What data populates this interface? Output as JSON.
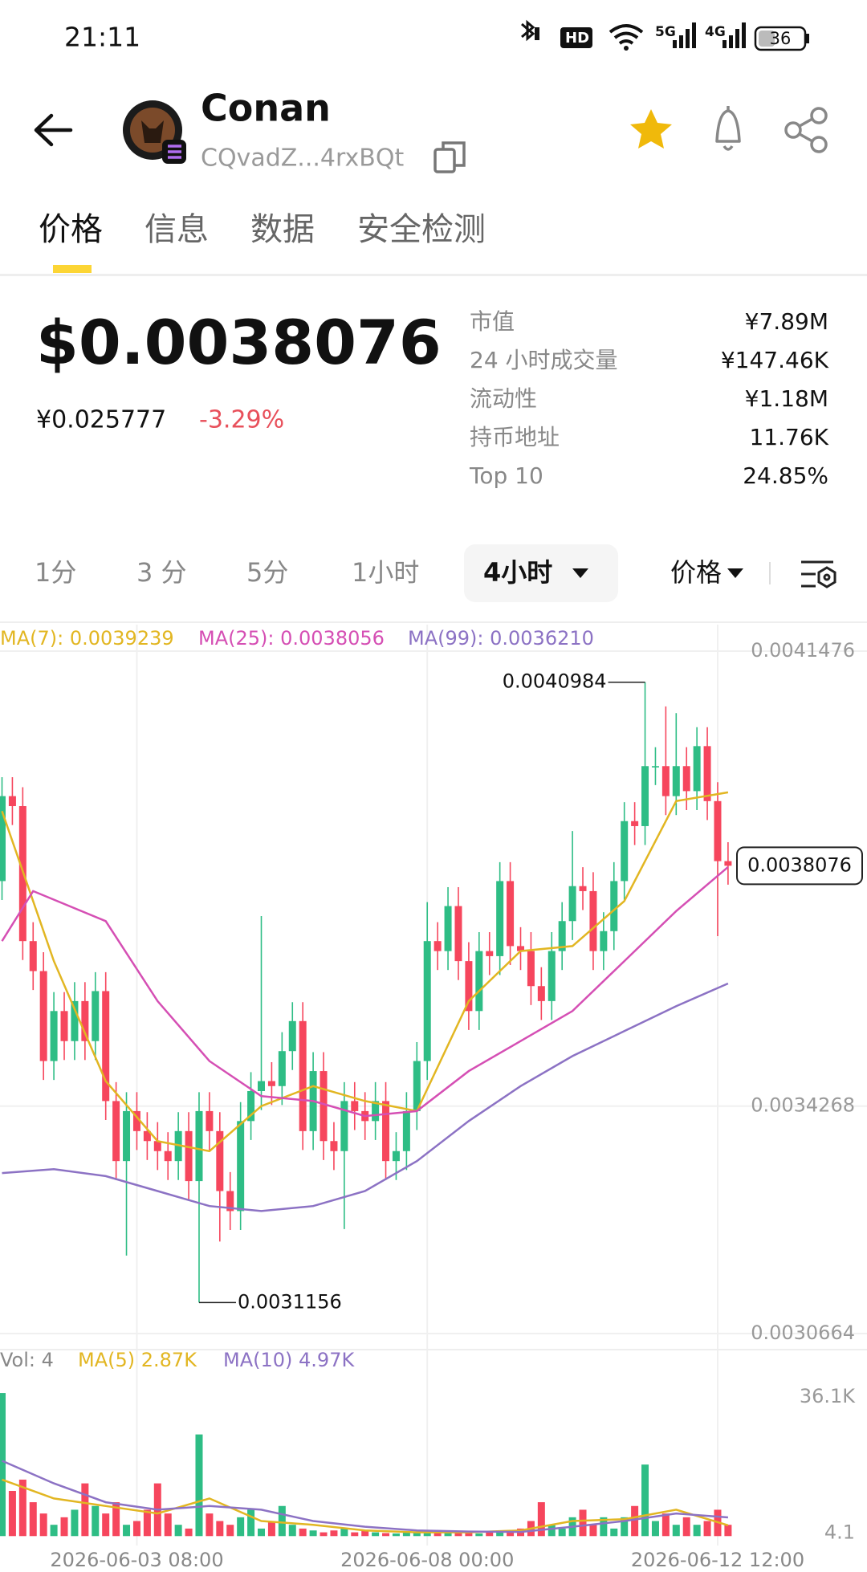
{
  "status_bar": {
    "time": "21:11",
    "hd": "HD",
    "network": [
      "5G",
      "4G"
    ],
    "battery": "36"
  },
  "header": {
    "name": "Conan",
    "address": "CQvadZ...4rxBQt"
  },
  "tabs": [
    "价格",
    "信息",
    "数据",
    "安全检测"
  ],
  "price": {
    "usd": "$0.0038076",
    "cny": "¥0.025777",
    "change": "-3.29%"
  },
  "stats": [
    {
      "label": "市值",
      "value": "¥7.89M"
    },
    {
      "label": "24 小时成交量",
      "value": "¥147.46K"
    },
    {
      "label": "流动性",
      "value": "¥1.18M"
    },
    {
      "label": "持币地址",
      "value": "11.76K"
    },
    {
      "label": "Top 10",
      "value": "24.85%"
    }
  ],
  "timeframes": [
    "1分",
    "3 分",
    "5分",
    "1小时",
    "4小时"
  ],
  "price_menu": "价格",
  "chart_data": {
    "type": "candlestick",
    "categories": [
      null,
      null,
      null,
      null,
      null,
      null,
      null,
      null,
      null,
      null,
      null,
      null,
      null,
      "2026-06-03 08:00",
      null,
      null,
      null,
      null,
      null,
      null,
      null,
      null,
      null,
      null,
      null,
      null,
      null,
      null,
      null,
      null,
      null,
      null,
      null,
      null,
      null,
      null,
      null,
      null,
      null,
      null,
      null,
      "2026-06-08 00:00",
      null,
      null,
      null,
      null,
      null,
      null,
      null,
      null,
      null,
      null,
      null,
      null,
      null,
      null,
      null,
      null,
      null,
      null,
      null,
      null,
      null,
      null,
      null,
      null,
      null,
      null,
      null,
      "2026-06-12 12:00",
      null
    ],
    "candles": {
      "open": [
        0.0037833,
        0.0039179,
        0.0039021,
        0.0036882,
        0.0036407,
        0.0034982,
        0.0035774,
        0.0035298,
        0.0035932,
        0.0035298,
        0.003609,
        0.0034348,
        0.0033397,
        0.0034189,
        0.0033872,
        0.0033714,
        0.0033555,
        0.0033397,
        0.0033872,
        0.003308,
        0.0034189,
        0.0033872,
        0.0032922,
        0.0032605,
        0.0034031,
        0.0034506,
        0.0034664,
        0.0034585,
        0.0035139,
        0.0035615,
        0.0033872,
        0.0034823,
        0.0033714,
        0.0033555,
        0.0034348,
        0.0034189,
        0.0034031,
        0.0034348,
        0.0033397,
        0.0033555,
        0.0034189,
        0.0034982,
        0.0036882,
        0.0036724,
        0.0037437,
        0.0036565,
        0.0035774,
        0.0036724,
        0.0036644,
        0.0037833,
        0.0036803,
        0.0036724,
        0.0036169,
        0.0035932,
        0.0036724,
        0.0037199,
        0.0037753,
        0.0037674,
        0.0036724,
        0.003704,
        0.0037833,
        0.0038783,
        0.0038704,
        0.0039654,
        0.0039654,
        0.0039179,
        0.0039654,
        0.0039258,
        0.0039971,
        0.00391,
        0.0038149
      ],
      "high": [
        0.0039479,
        0.0039479,
        0.0039321,
        0.0037182,
        0.0036707,
        0.0036074,
        0.0036074,
        0.0036232,
        0.0036232,
        0.003639,
        0.003639,
        0.0034648,
        0.0034489,
        0.0034489,
        0.0034172,
        0.0034014,
        0.0033855,
        0.0034172,
        0.0034172,
        0.0034489,
        0.0034489,
        0.0034172,
        0.0033222,
        0.0034331,
        0.0034806,
        0.0037278,
        0.0034964,
        0.0035439,
        0.0035915,
        0.0035915,
        0.0035123,
        0.0035123,
        0.0034014,
        0.0034648,
        0.0034648,
        0.0034489,
        0.0034648,
        0.0034648,
        0.0033855,
        0.0034489,
        0.0035282,
        0.00375,
        0.0037182,
        0.0037737,
        0.0037737,
        0.0036865,
        0.0037024,
        0.0037024,
        0.0038133,
        0.0038133,
        0.0037103,
        0.0037024,
        0.0036469,
        0.0037024,
        0.0037499,
        0.0038625,
        0.0038053,
        0.0037974,
        0.003734,
        0.0038133,
        0.0039083,
        0.0039083,
        0.0040984,
        0.0039954,
        0.00406,
        0.0040494,
        0.0039954,
        0.0040271,
        0.0040271,
        0.00394,
        0.0038449
      ],
      "low": [
        0.0037533,
        0.0038721,
        0.0036582,
        0.0036107,
        0.0034682,
        0.0034682,
        0.0034998,
        0.0034998,
        0.0034998,
        0.0034998,
        0.0034048,
        0.0033097,
        0.00319,
        0.0033572,
        0.0033414,
        0.0033255,
        0.0033097,
        0.0033097,
        0.003278,
        0.0031156,
        0.0033572,
        0.0032122,
        0.0032305,
        0.0032305,
        0.0033731,
        0.0034206,
        0.0034285,
        0.0034285,
        0.0034839,
        0.0033572,
        0.0033572,
        0.0033414,
        0.0033255,
        0.003232,
        0.0033889,
        0.0033731,
        0.0033731,
        0.0033097,
        0.0033097,
        0.0033255,
        0.0033889,
        0.0034682,
        0.0036424,
        0.0036424,
        0.0036265,
        0.0035474,
        0.0035474,
        0.0036344,
        0.0036344,
        0.0036503,
        0.0036424,
        0.0035869,
        0.0035632,
        0.0035632,
        0.0036424,
        0.0036899,
        0.0037374,
        0.0036424,
        0.0036424,
        0.003674,
        0.0037533,
        0.0038404,
        0.0038404,
        0.0039354,
        0.0038879,
        0.0038879,
        0.0038958,
        0.0038958,
        0.00388,
        0.0036961,
        0.0037776
      ],
      "close": [
        0.0039179,
        0.0039021,
        0.0036882,
        0.0036407,
        0.0034982,
        0.0035774,
        0.0035298,
        0.0035932,
        0.0035298,
        0.003609,
        0.0034348,
        0.0033397,
        0.0034189,
        0.0033872,
        0.0033714,
        0.0033555,
        0.0033397,
        0.0033872,
        0.003308,
        0.0034189,
        0.0033872,
        0.0032922,
        0.0032605,
        0.0034031,
        0.0034506,
        0.0034664,
        0.0034585,
        0.0035139,
        0.0035615,
        0.0033872,
        0.0034823,
        0.0033714,
        0.0033555,
        0.0034348,
        0.0034189,
        0.0034031,
        0.0034348,
        0.0033397,
        0.0033555,
        0.0034189,
        0.0034982,
        0.0036882,
        0.0036724,
        0.0037437,
        0.0036565,
        0.0035774,
        0.0036724,
        0.0036644,
        0.0037833,
        0.0036803,
        0.0036724,
        0.0036169,
        0.0035932,
        0.0036724,
        0.0037199,
        0.0037753,
        0.0037674,
        0.0036724,
        0.003704,
        0.0037833,
        0.0038783,
        0.0038704,
        0.0039654,
        0.0039654,
        0.0039179,
        0.0039654,
        0.0039258,
        0.0039971,
        0.00391,
        0.0038149,
        0.0038076
      ],
      "up_color": "#2ebd85",
      "down_color": "#f6465d"
    },
    "series": [
      {
        "name": "MA(7): 0.0039239",
        "color": "#e2b622",
        "x": [
          0,
          5,
          10,
          15,
          20,
          25,
          30,
          35,
          40,
          45,
          50,
          55,
          60,
          65,
          70
        ],
        "values": [
          0.0038941,
          0.0036565,
          0.0034664,
          0.0033714,
          0.0033555,
          0.0034268,
          0.0034585,
          0.0034348,
          0.0034189,
          0.0035932,
          0.0036724,
          0.0036803,
          0.0037516,
          0.00391,
          0.0039239
        ]
      },
      {
        "name": "MA(25): 0.0038056",
        "color": "#d54fb4",
        "x": [
          0,
          3,
          10,
          15,
          20,
          25,
          30,
          35,
          40,
          45,
          50,
          55,
          60,
          65,
          70
        ],
        "values": [
          0.0036882,
          0.0037674,
          0.0037199,
          0.0035932,
          0.0034982,
          0.0034426,
          0.0034348,
          0.003411,
          0.0034189,
          0.0034823,
          0.0035298,
          0.0035774,
          0.0036565,
          0.0037357,
          0.0038056
        ]
      },
      {
        "name": "MA(99): 0.0036210",
        "color": "#8c72c4",
        "x": [
          0,
          5,
          10,
          15,
          20,
          25,
          30,
          35,
          40,
          45,
          50,
          55,
          60,
          65,
          70
        ],
        "values": [
          0.0033207,
          0.003327,
          0.0033159,
          0.0032922,
          0.0032684,
          0.0032605,
          0.0032684,
          0.0032922,
          0.0033397,
          0.0034031,
          0.0034585,
          0.003506,
          0.0035456,
          0.0035852,
          0.003621
        ]
      }
    ],
    "ylim": [
      0.0030461,
      0.0041896
    ],
    "yticks": [
      0.0041476,
      0.0034268,
      0.0030664
    ],
    "grid": true,
    "current_price": 0.0038076,
    "max_label": 0.0040984,
    "min_label": 0.0031156,
    "volume": {
      "title": "Vol: 4",
      "values": [
        38000,
        12000,
        15000,
        9000,
        6000,
        3000,
        5000,
        7000,
        14000,
        8000,
        6000,
        9000,
        3000,
        4000,
        7000,
        14000,
        6000,
        3000,
        2000,
        27000,
        6000,
        4000,
        3000,
        5000,
        7000,
        2000,
        4000,
        8000,
        3000,
        2000,
        1500,
        1000,
        1500,
        2000,
        1000,
        1500,
        1000,
        800,
        700,
        1000,
        800,
        1500,
        1200,
        1000,
        900,
        800,
        700,
        1000,
        1500,
        1000,
        2000,
        4000,
        9000,
        3000,
        2000,
        5000,
        7000,
        3000,
        5000,
        2000,
        5000,
        8000,
        19000,
        4000,
        6000,
        3000,
        5000,
        3000,
        4000,
        7000,
        3000
      ],
      "series": [
        {
          "name": "MA(5) 2.87K",
          "color": "#e2b622",
          "x": [
            0,
            5,
            10,
            15,
            20,
            25,
            30,
            35,
            40,
            45,
            50,
            55,
            60,
            65,
            70
          ],
          "values": [
            15000,
            10000,
            8000,
            6000,
            10000,
            4000,
            3000,
            1500,
            1000,
            1000,
            1500,
            4000,
            4500,
            7000,
            2870
          ]
        },
        {
          "name": "MA(10) 4.97K",
          "color": "#8c72c4",
          "x": [
            0,
            5,
            10,
            15,
            20,
            25,
            30,
            35,
            40,
            45,
            50,
            55,
            60,
            65,
            70
          ],
          "values": [
            20000,
            14000,
            9000,
            7000,
            8000,
            7000,
            4000,
            2500,
            1500,
            1200,
            1100,
            2500,
            4000,
            6000,
            4970
          ]
        }
      ],
      "ylim": [
        -2500,
        41000
      ],
      "yticks": [
        {
          "value": 36100,
          "label": "36.1K"
        },
        4.1
      ]
    }
  }
}
